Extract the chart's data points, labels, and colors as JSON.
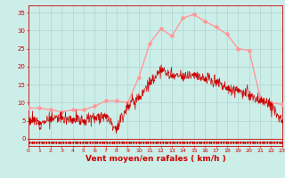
{
  "xlabel": "Vent moyen/en rafales ( km/h )",
  "xlabel_color": "#cc0000",
  "bg_color": "#cceee8",
  "grid_color": "#aacccc",
  "axis_color": "#cc0000",
  "tick_color": "#cc0000",
  "ylim": [
    -2,
    37
  ],
  "xlim": [
    0,
    23
  ],
  "yticks": [
    0,
    5,
    10,
    15,
    20,
    25,
    30,
    35
  ],
  "xticks": [
    0,
    1,
    2,
    3,
    4,
    5,
    6,
    7,
    8,
    9,
    10,
    11,
    12,
    13,
    14,
    15,
    16,
    17,
    18,
    19,
    20,
    21,
    22,
    23
  ],
  "smooth_color": "#ff9999",
  "jagged_color": "#cc0000",
  "smooth_y": [
    8.5,
    8.5,
    8.0,
    7.5,
    8.0,
    8.0,
    9.0,
    10.5,
    10.5,
    10.0,
    17.0,
    26.5,
    30.5,
    28.5,
    33.5,
    34.5,
    32.5,
    31.0,
    29.0,
    25.0,
    24.5,
    11.5,
    10.0,
    9.5
  ],
  "jagged_y": [
    5.5,
    4.5,
    5.5,
    6.0,
    5.5,
    5.0,
    6.0,
    6.5,
    3.0,
    9.0,
    11.5,
    15.5,
    19.0,
    17.5,
    17.0,
    18.0,
    16.5,
    16.0,
    14.0,
    13.5,
    12.0,
    10.5,
    9.5,
    5.0
  ]
}
